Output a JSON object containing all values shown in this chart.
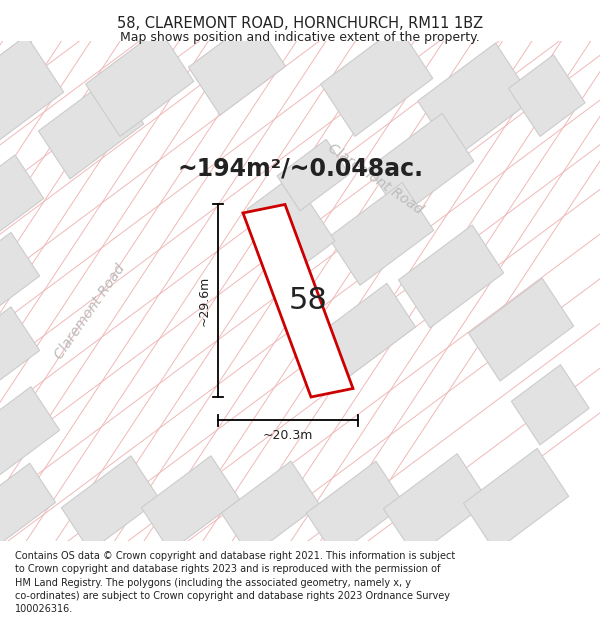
{
  "title": "58, CLAREMONT ROAD, HORNCHURCH, RM11 1BZ",
  "subtitle": "Map shows position and indicative extent of the property.",
  "area_label": "~194m²/~0.048ac.",
  "width_label": "~20.3m",
  "height_label": "~29.6m",
  "property_number": "58",
  "footer": "Contains OS data © Crown copyright and database right 2021. This information is subject to Crown copyright and database rights 2023 and is reproduced with the permission of HM Land Registry. The polygons (including the associated geometry, namely x, y co-ordinates) are subject to Crown copyright and database rights 2023 Ordnance Survey 100026316.",
  "bg_color": "#ffffff",
  "map_bg": "#f8f8f8",
  "road_fill": "#e2e2e2",
  "road_edge": "#cccccc",
  "grid_color": "#f0b8b8",
  "prop_color": "#cc0000",
  "prop_fill": "#ffffff",
  "text_color": "#222222",
  "road_label_color": "#bbbbbb",
  "title_fontsize": 10.5,
  "subtitle_fontsize": 9,
  "area_fontsize": 17,
  "number_fontsize": 22,
  "dim_fontsize": 9,
  "road_label_fontsize": 10,
  "footer_fontsize": 7
}
